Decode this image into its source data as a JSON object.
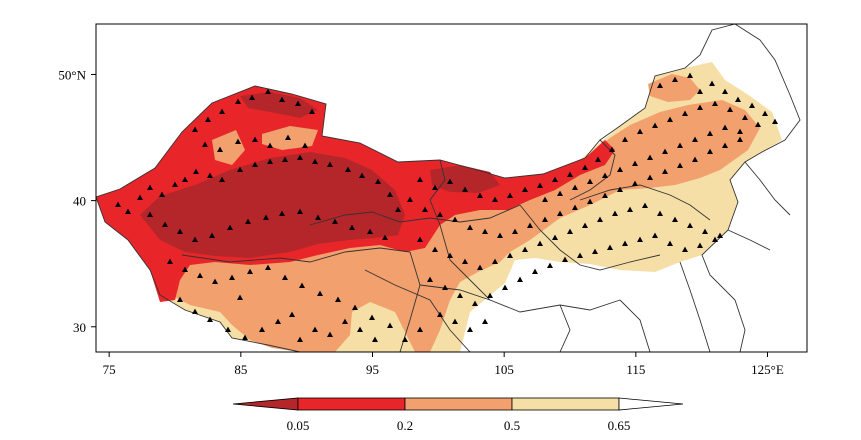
{
  "map": {
    "lon_range": [
      74,
      128
    ],
    "lat_range": [
      28,
      54
    ],
    "x_ticks": [
      {
        "value": 75,
        "label": "75"
      },
      {
        "value": 85,
        "label": "85"
      },
      {
        "value": 95,
        "label": "95"
      },
      {
        "value": 105,
        "label": "105"
      },
      {
        "value": 115,
        "label": "115"
      },
      {
        "value": 125,
        "label": "125°E"
      }
    ],
    "y_ticks": [
      {
        "value": 30,
        "label": "30"
      },
      {
        "value": 40,
        "label": "40"
      },
      {
        "value": 50,
        "label": "50°N"
      }
    ]
  },
  "colorbar": {
    "boundaries": [
      "0.05",
      "0.2",
      "0.5",
      "0.65"
    ],
    "colors": [
      "#b5262b",
      "#e8262a",
      "#f2a06e",
      "#f5dfa6",
      "#ffffff"
    ]
  },
  "colors": {
    "darkest": "#b5262b",
    "dark": "#e8262a",
    "mid": "#f2a06e",
    "light": "#f5dfa6",
    "marker": "#000000",
    "border": "#333333"
  }
}
